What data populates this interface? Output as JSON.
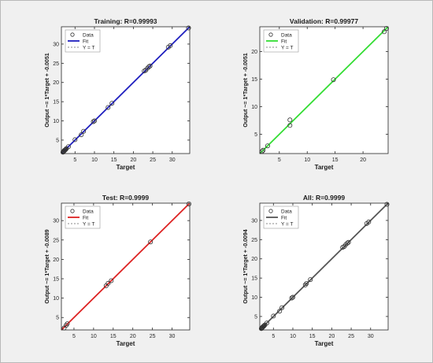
{
  "chart_data": [
    {
      "type": "scatter",
      "title": "Training: R=0.99993",
      "xlabel": "Target",
      "ylabel": "Output ~= 1*Target + -0.0051",
      "xlim": [
        1.5,
        34.5
      ],
      "ylim": [
        1.5,
        34.5
      ],
      "xticks": [
        5,
        10,
        15,
        20,
        25,
        30
      ],
      "yticks": [
        5,
        10,
        15,
        20,
        25,
        30
      ],
      "legend": [
        "Data",
        "Fit",
        "Y = T"
      ],
      "legend_position": "top-left",
      "fit_color": "#1f1fbf",
      "data": [
        [
          1.9,
          1.85
        ],
        [
          2.0,
          2.0
        ],
        [
          2.1,
          2.05
        ],
        [
          2.2,
          2.2
        ],
        [
          2.3,
          2.35
        ],
        [
          2.4,
          2.4
        ],
        [
          2.5,
          2.45
        ],
        [
          2.6,
          2.6
        ],
        [
          2.8,
          2.8
        ],
        [
          3.3,
          3.3
        ],
        [
          5.0,
          5.1
        ],
        [
          6.6,
          6.4
        ],
        [
          7.2,
          7.3
        ],
        [
          9.7,
          9.8
        ],
        [
          10.0,
          10.0
        ],
        [
          13.5,
          13.5
        ],
        [
          14.5,
          14.6
        ],
        [
          22.8,
          23.0
        ],
        [
          23.2,
          23.2
        ],
        [
          23.6,
          23.7
        ],
        [
          24.0,
          24.1
        ],
        [
          24.3,
          24.3
        ],
        [
          29.0,
          29.2
        ],
        [
          29.5,
          29.6
        ],
        [
          34.2,
          34.2
        ]
      ]
    },
    {
      "type": "scatter",
      "title": "Validation: R=0.99977",
      "xlabel": "Target",
      "ylabel": "Output ~= 1*Target + -0.0051",
      "xlim": [
        1.5,
        24.5
      ],
      "ylim": [
        1.5,
        24.5
      ],
      "xticks": [
        5,
        10,
        15,
        20
      ],
      "yticks": [
        5,
        10,
        15,
        20
      ],
      "legend": [
        "Data",
        "Fit",
        "Y = T"
      ],
      "legend_position": "top-left",
      "fit_color": "#33dd33",
      "data": [
        [
          1.9,
          1.9
        ],
        [
          2.1,
          2.1
        ],
        [
          2.9,
          2.9
        ],
        [
          6.9,
          6.6
        ],
        [
          6.9,
          7.6
        ],
        [
          14.7,
          14.9
        ],
        [
          23.8,
          23.6
        ],
        [
          24.2,
          24.2
        ]
      ]
    },
    {
      "type": "scatter",
      "title": "Test: R=0.9999",
      "xlabel": "Target",
      "ylabel": "Output ~= 1*Target + -0.0089",
      "xlim": [
        1.8,
        34.5
      ],
      "ylim": [
        1.8,
        34.5
      ],
      "xticks": [
        5,
        10,
        15,
        20,
        25,
        30
      ],
      "yticks": [
        5,
        10,
        15,
        20,
        25,
        30
      ],
      "legend": [
        "Data",
        "Fit",
        "Y = T"
      ],
      "legend_position": "top-left",
      "fit_color": "#dd2222",
      "data": [
        [
          2.5,
          2.3
        ],
        [
          3.0,
          3.0
        ],
        [
          3.3,
          3.4
        ],
        [
          13.2,
          13.2
        ],
        [
          13.7,
          13.8
        ],
        [
          14.5,
          14.5
        ],
        [
          24.5,
          24.5
        ],
        [
          34.3,
          34.3
        ]
      ]
    },
    {
      "type": "scatter",
      "title": "All: R=0.9999",
      "xlabel": "Target",
      "ylabel": "Output ~= 1*Target + -0.0094",
      "xlim": [
        1.5,
        34.5
      ],
      "ylim": [
        1.5,
        34.5
      ],
      "xticks": [
        5,
        10,
        15,
        20,
        25,
        30
      ],
      "yticks": [
        5,
        10,
        15,
        20,
        25,
        30
      ],
      "legend": [
        "Data",
        "Fit",
        "Y = T"
      ],
      "legend_position": "top-left",
      "fit_color": "#555555",
      "data": [
        [
          1.9,
          1.85
        ],
        [
          2.0,
          2.0
        ],
        [
          2.1,
          2.05
        ],
        [
          2.2,
          2.2
        ],
        [
          2.3,
          2.35
        ],
        [
          2.4,
          2.4
        ],
        [
          2.5,
          2.45
        ],
        [
          2.6,
          2.6
        ],
        [
          2.8,
          2.8
        ],
        [
          3.3,
          3.3
        ],
        [
          5.0,
          5.1
        ],
        [
          6.6,
          6.4
        ],
        [
          7.2,
          7.3
        ],
        [
          9.7,
          9.8
        ],
        [
          10.0,
          10.0
        ],
        [
          13.2,
          13.2
        ],
        [
          13.5,
          13.6
        ],
        [
          14.5,
          14.6
        ],
        [
          22.8,
          23.0
        ],
        [
          23.2,
          23.2
        ],
        [
          23.6,
          23.7
        ],
        [
          24.0,
          24.1
        ],
        [
          24.3,
          24.3
        ],
        [
          29.0,
          29.2
        ],
        [
          29.5,
          29.6
        ],
        [
          34.2,
          34.2
        ]
      ]
    }
  ]
}
